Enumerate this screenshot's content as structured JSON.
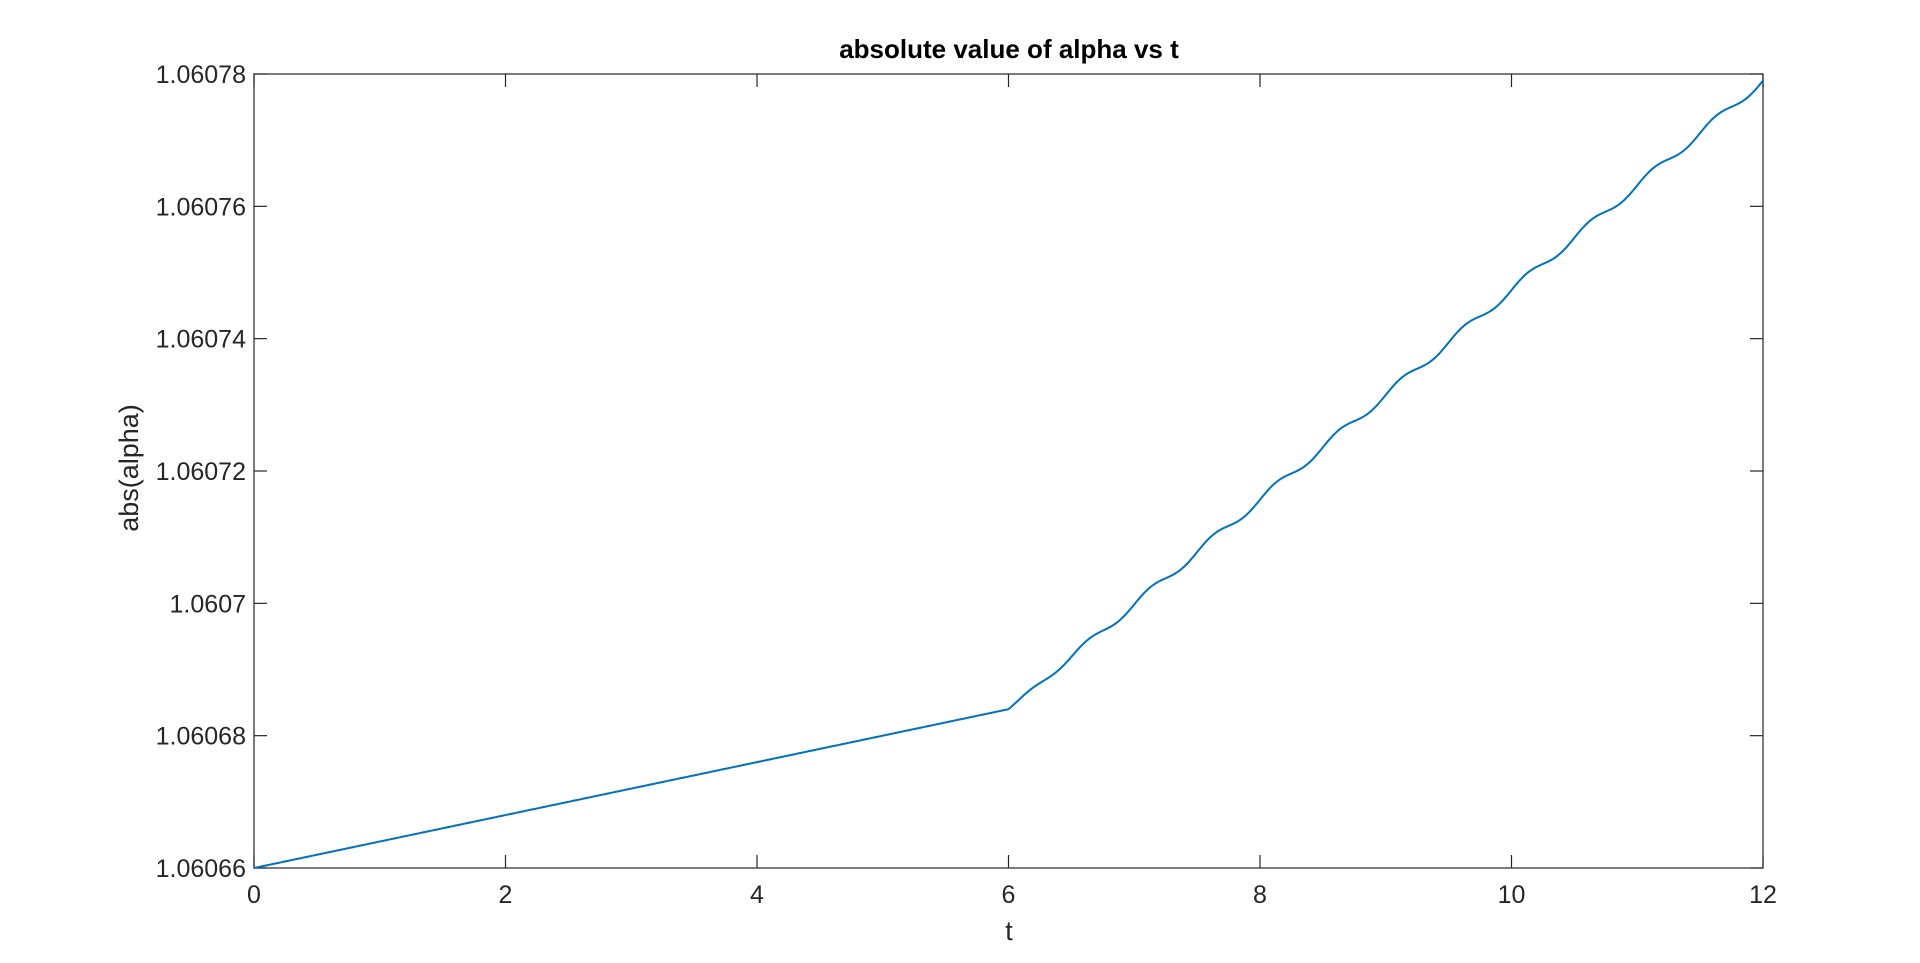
{
  "chart_data": {
    "type": "line",
    "title": "absolute value of alpha vs t",
    "xlabel": "t",
    "ylabel": "abs(alpha)",
    "xlim": [
      0,
      12
    ],
    "ylim": [
      1.06066,
      1.06078
    ],
    "xticks": [
      0,
      2,
      4,
      6,
      8,
      10,
      12
    ],
    "xtick_labels": [
      "0",
      "2",
      "4",
      "6",
      "8",
      "10",
      "12"
    ],
    "yticks": [
      1.06066,
      1.06068,
      1.0607,
      1.06072,
      1.06074,
      1.06076,
      1.06078
    ],
    "ytick_labels": [
      "1.06066",
      "1.06068",
      "1.0607",
      "1.06072",
      "1.06074",
      "1.06076",
      "1.06078"
    ],
    "grid": false,
    "box": true,
    "series": [
      {
        "color": "#0072BD",
        "x": [
          0,
          6,
          12
        ],
        "y": [
          1.06066,
          1.060684,
          1.060779
        ],
        "wiggle_after_t": 6,
        "wiggle_period": 0.5,
        "wiggle_amplitude": 6e-07
      }
    ]
  }
}
